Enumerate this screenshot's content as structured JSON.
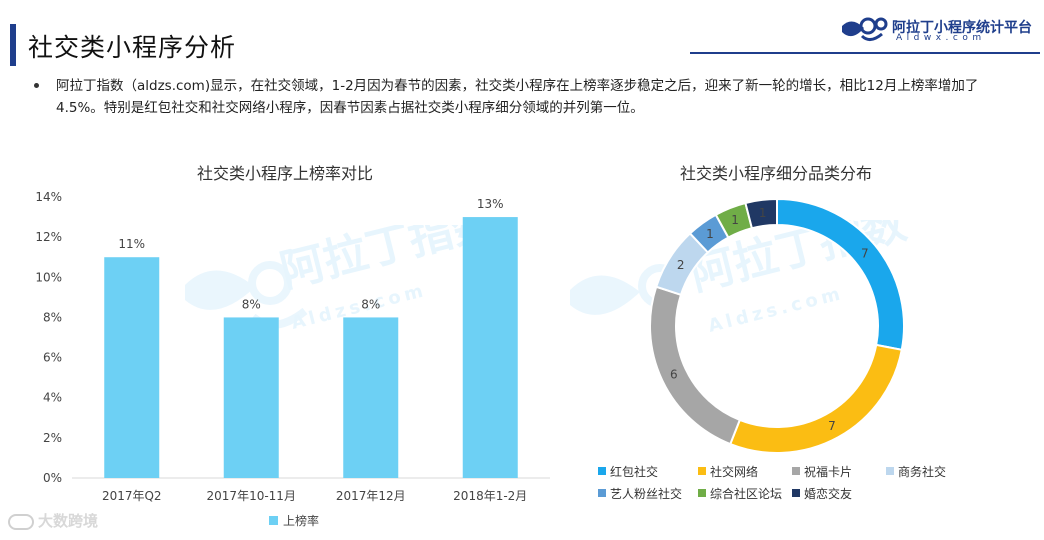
{
  "page": {
    "title": "社交类小程序分析",
    "summary": "阿拉丁指数（aldzs.com)显示，在社交领域，1-2月因为春节的因素，社交类小程序在上榜率逐步稳定之后，迎来了新一轮的增长，相比12月上榜率增加了4.5%。特别是红包社交和社交网络小程序，因春节因素占据社交类小程序细分领域的并列第一位。"
  },
  "brand": {
    "name": "阿拉丁小程序统计平台",
    "sub": "Aldwx.com",
    "color": "#1f3e8c"
  },
  "watermark": {
    "main": "阿拉丁指数",
    "sub": "Aldzs.com"
  },
  "bottom_watermark": "大数跨境",
  "chart_data": [
    {
      "type": "bar",
      "title": "社交类小程序上榜率对比",
      "categories": [
        "2017年Q2",
        "2017年10-11月",
        "2017年12月",
        "2018年1-2月"
      ],
      "series": [
        {
          "name": "上榜率",
          "values": [
            11,
            8,
            8,
            13
          ],
          "color": "#6dd0f4"
        }
      ],
      "data_labels": [
        "11%",
        "8%",
        "8%",
        "13%"
      ],
      "ylim": [
        0,
        14
      ],
      "yticks": [
        0,
        2,
        4,
        6,
        8,
        10,
        12,
        14
      ],
      "ytick_labels": [
        "0%",
        "2%",
        "4%",
        "6%",
        "8%",
        "10%",
        "12%",
        "14%"
      ],
      "legend": "bottom",
      "grid": false
    },
    {
      "type": "pie",
      "donut": true,
      "title": "社交类小程序细分品类分布",
      "labels": [
        "红包社交",
        "社交网络",
        "祝福卡片",
        "商务社交",
        "艺人粉丝社交",
        "综合社区论坛",
        "婚恋交友"
      ],
      "values": [
        7,
        7,
        6,
        2,
        1,
        1,
        1
      ],
      "colors": [
        "#1aa7ec",
        "#fbbd13",
        "#a6a6a6",
        "#bdd7ee",
        "#5b9bd5",
        "#70ad47",
        "#203864"
      ],
      "legend": "bottom"
    }
  ]
}
